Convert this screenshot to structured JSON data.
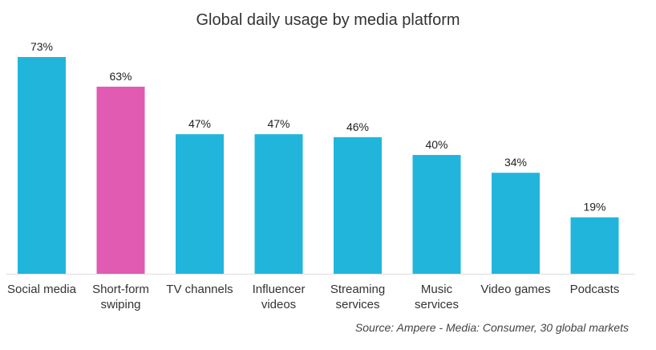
{
  "chart_data": {
    "type": "bar",
    "title": "Global daily usage by media platform",
    "categories": [
      [
        "Social media"
      ],
      [
        "Short-form",
        "swiping"
      ],
      [
        "TV channels"
      ],
      [
        "Influencer",
        "videos"
      ],
      [
        "Streaming",
        "services"
      ],
      [
        "Music",
        "services"
      ],
      [
        "Video games"
      ],
      [
        "Podcasts"
      ]
    ],
    "values": [
      73,
      63,
      47,
      47,
      46,
      40,
      34,
      19
    ],
    "value_labels": [
      "73%",
      "63%",
      "47%",
      "47%",
      "46%",
      "40%",
      "34%",
      "19%"
    ],
    "unit": "%",
    "ylim": [
      0,
      73
    ],
    "grid": false,
    "legend": "none",
    "colors": {
      "default": "#22b5dc",
      "highlight": "#e05bb1",
      "baseline": "#dddddd"
    },
    "highlight_index": 1
  },
  "source": "Source: Ampere - Media: Consumer, 30 global markets"
}
